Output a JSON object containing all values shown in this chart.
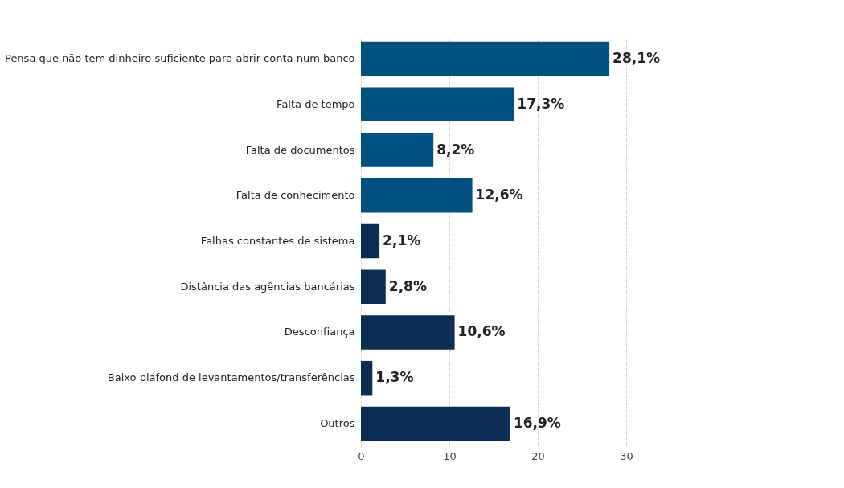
{
  "chart_data": {
    "type": "bar",
    "orientation": "horizontal",
    "categories": [
      "Pensa que não tem dinheiro suficiente para abrir conta num banco",
      "Falta de tempo",
      "Falta de documentos",
      "Falta de conhecimento",
      "Falhas constantes de sistema",
      "Distância das agências bancárias",
      "Desconfiança",
      "Baixo plafond de levantamentos/transferências",
      "Outros"
    ],
    "values": [
      28.1,
      17.3,
      8.2,
      12.6,
      2.1,
      2.8,
      10.6,
      1.3,
      16.9
    ],
    "colors": [
      "#00507f",
      "#00507f",
      "#00507f",
      "#00507f",
      "#0b2f52",
      "#0b2f52",
      "#0b2f52",
      "#0b2f52",
      "#0b2f52"
    ],
    "value_labels": [
      "28,1%",
      "17,3%",
      "8,2%",
      "12,6%",
      "2,1%",
      "2,8%",
      "10,6%",
      "1,3%",
      "16,9%"
    ],
    "xlim": [
      0,
      30
    ],
    "xticks": [
      0,
      10,
      20,
      30
    ],
    "grid": "x"
  }
}
